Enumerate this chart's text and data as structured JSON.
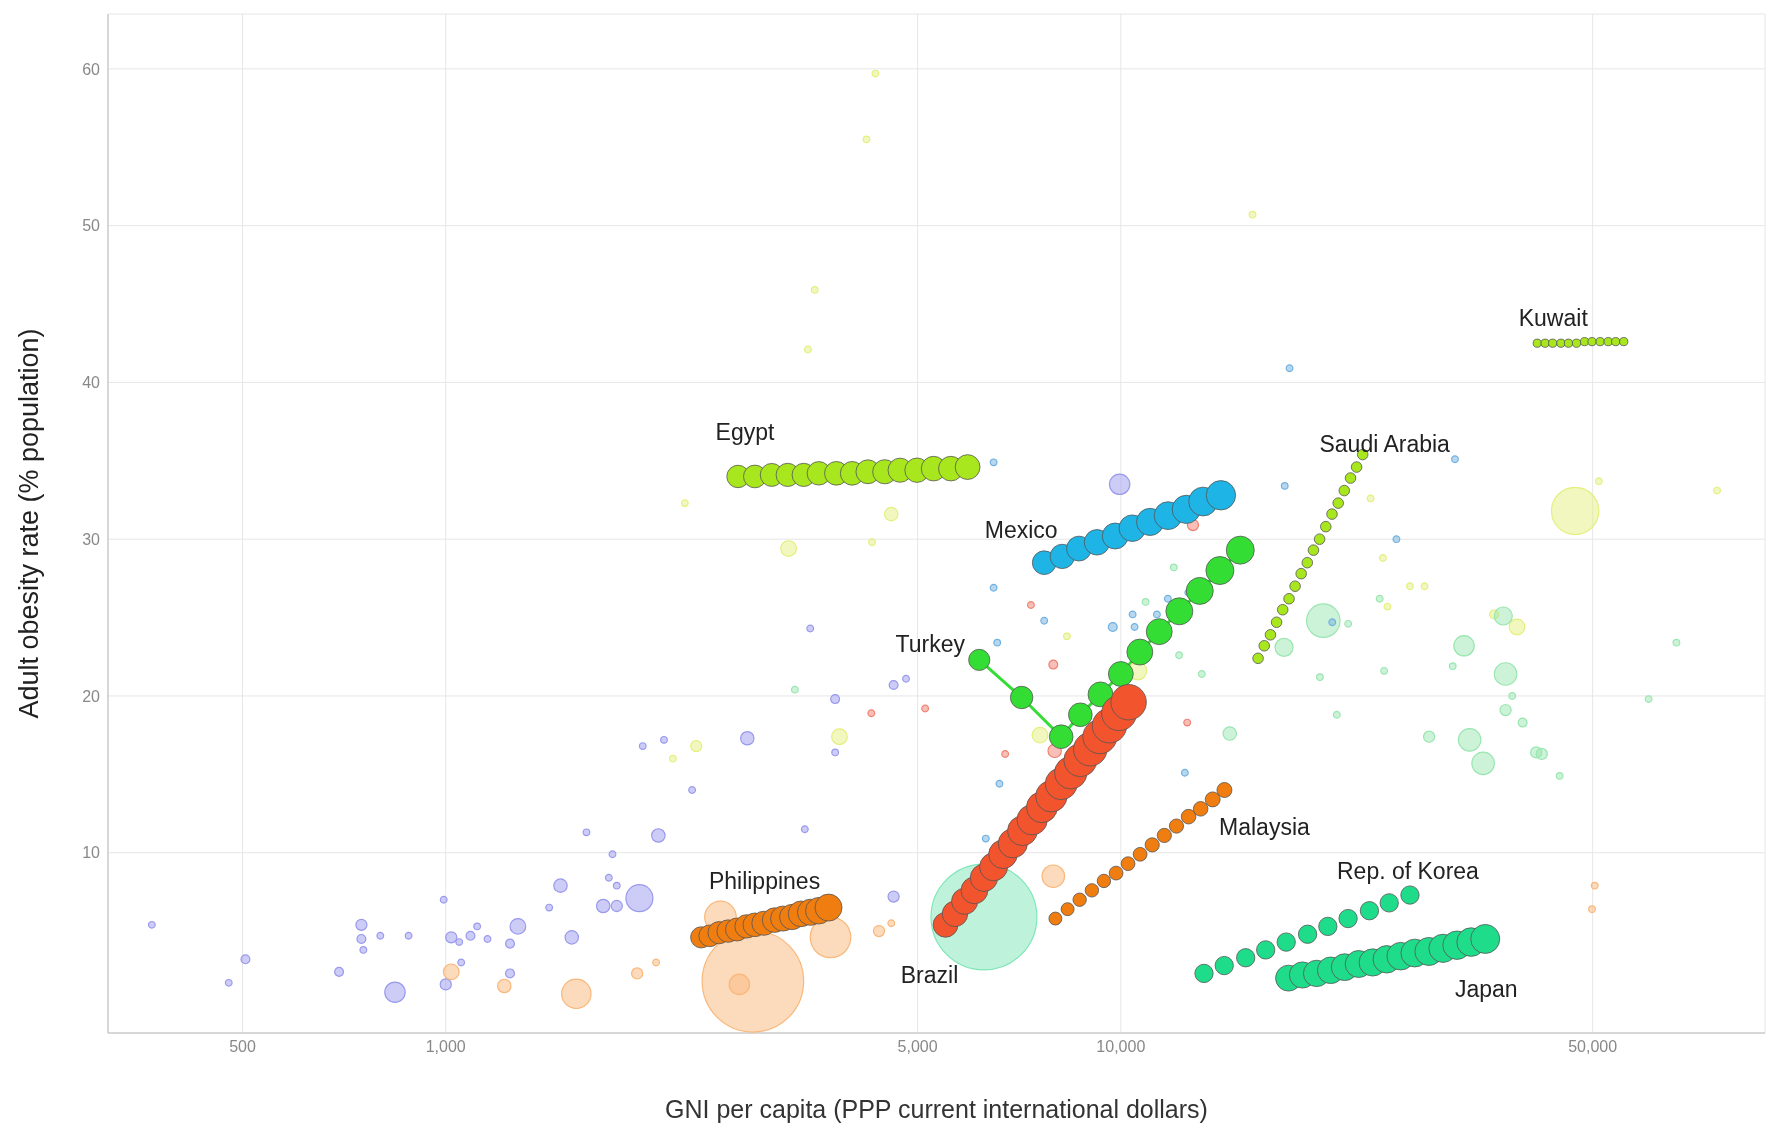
{
  "chart_data": {
    "type": "bubble",
    "xlabel": "GNI per capita (PPP current international dollars)",
    "ylabel": "Adult obesity rate (% population)",
    "log": "x",
    "grid": true,
    "xlim": [
      316,
      90000
    ],
    "ylim": [
      -1.5,
      63.5
    ],
    "xticks": [
      500,
      {
        "value": 1000,
        "label": "1,000"
      },
      {
        "value": 5000,
        "label": "5,000"
      },
      {
        "value": 10000,
        "label": "10,000"
      },
      {
        "value": 50000,
        "label": "50,000"
      }
    ],
    "yticks": [
      10,
      20,
      30,
      40,
      50,
      60
    ],
    "series": [
      {
        "color": "#9999ee",
        "x": [
          367,
          477,
          505,
          695,
          750,
          750,
          755,
          800,
          881,
          841,
          993,
          1019,
          1000,
          1047,
          1054,
          1088,
          1113,
          1153,
          1245,
          1245,
          1279,
          1423,
          1479,
          1537,
          1616,
          1711,
          1744,
          1766,
          1792,
          1792,
          1936,
          1958,
          2065,
          2105,
          2317,
          2797,
          3403,
          3467,
          3774,
          3774,
          4607,
          4607,
          4806,
          9960
        ],
        "values": [
          5.4,
          1.7,
          3.2,
          2.4,
          5.4,
          4.5,
          3.8,
          4.7,
          4.7,
          1.1,
          7.0,
          4.6,
          1.6,
          4.3,
          3.0,
          4.7,
          5.3,
          4.5,
          4.2,
          2.3,
          5.3,
          6.5,
          7.9,
          4.6,
          11.3,
          6.6,
          8.4,
          9.9,
          6.6,
          7.9,
          7.1,
          16.8,
          11.1,
          17.2,
          14.0,
          17.3,
          11.5,
          24.3,
          16.4,
          19.8,
          7.2,
          20.7,
          21.1,
          33.5
        ],
        "sizes": [
          0.004,
          0.004,
          0.007,
          0.007,
          0.011,
          0.007,
          0.004,
          0.004,
          0.004,
          0.037,
          0.004,
          0.011,
          0.011,
          0.004,
          0.004,
          0.007,
          0.004,
          0.004,
          0.007,
          0.007,
          0.022,
          0.004,
          0.016,
          0.016,
          0.004,
          0.016,
          0.004,
          0.004,
          0.011,
          0.004,
          0.065,
          0.004,
          0.016,
          0.004,
          0.004,
          0.016,
          0.004,
          0.004,
          0.004,
          0.007,
          0.011,
          0.007,
          0.004,
          0.037
        ]
      },
      {
        "color": "#f9b77a",
        "x": [
          1019,
          1221,
          1561,
          1921,
          2049,
          2552,
          2851,
          2722,
          3715,
          4383,
          4571,
          7943,
          49890,
          50350
        ],
        "values": [
          2.4,
          1.5,
          1.0,
          2.3,
          3.0,
          5.9,
          1.8,
          1.6,
          4.6,
          5.0,
          5.5,
          8.5,
          6.4,
          7.9
        ],
        "sizes": [
          0.022,
          0.016,
          0.077,
          0.011,
          0.004,
          0.089,
          0.92,
          0.037,
          0.147,
          0.011,
          0.004,
          0.045,
          0.004,
          0.004
        ]
      },
      {
        "color": "#7fe6b8",
        "x": [
          6270
        ],
        "values": [
          5.9
        ],
        "sizes": [
          1
        ]
      },
      {
        "color": "#e4ef7e",
        "x": [
          4330,
          4200,
          3520,
          3440,
          15670,
          2260,
          3220,
          4570,
          4280,
          3830,
          2350,
          2170,
          7590,
          8320,
          10590,
          47100,
          51060,
          76420,
          35730,
          38620,
          23440,
          24450,
          24830,
          26810,
          28180
        ],
        "values": [
          59.7,
          55.5,
          45.9,
          42.1,
          50.7,
          32.3,
          29.4,
          31.6,
          29.8,
          17.4,
          16.8,
          16.0,
          17.5,
          23.8,
          21.6,
          31.8,
          33.7,
          33.1,
          25.2,
          24.4,
          32.6,
          28.8,
          25.7,
          27.0,
          27.0
        ],
        "sizes": [
          0.004,
          0.004,
          0.004,
          0.004,
          0.004,
          0.004,
          0.022,
          0.016,
          0.004,
          0.022,
          0.011,
          0.004,
          0.022,
          0.004,
          0.029,
          0.2,
          0.004,
          0.004,
          0.007,
          0.022,
          0.004,
          0.004,
          0.004,
          0.004,
          0.004
        ]
      },
      {
        "color": "#99e6b0",
        "x": [
          19950,
          17450,
          14500,
          28620,
          32240,
          32860,
          34410,
          37150,
          36860,
          37150,
          39370,
          41240,
          42030,
          44670,
          60510,
          66530,
          20890,
          21720,
          24550,
          24180,
          12200,
          13180,
          11980,
          10880,
          38000,
          19720,
          3290,
          31020
        ],
        "values": [
          24.8,
          23.1,
          17.6,
          17.4,
          23.2,
          17.2,
          15.7,
          21.4,
          25.1,
          19.1,
          18.3,
          16.4,
          16.3,
          14.9,
          19.8,
          23.4,
          18.8,
          24.6,
          21.6,
          26.2,
          22.6,
          21.4,
          28.2,
          26.0,
          20.0,
          21.2,
          20.4,
          21.9
        ],
        "sizes": [
          0.1,
          0.029,
          0.016,
          0.011,
          0.037,
          0.045,
          0.045,
          0.045,
          0.029,
          0.011,
          0.007,
          0.011,
          0.011,
          0.004,
          0.004,
          0.004,
          0.004,
          0.004,
          0.004,
          0.004,
          0.004,
          0.004,
          0.004,
          0.004,
          0.004,
          0.004,
          0.004,
          0.004
        ]
      },
      {
        "color": "#6fb0e0",
        "x": [
          6480,
          17780,
          31260,
          17490,
          25600,
          6480,
          7700,
          9730,
          10410,
          10480,
          11310,
          20570,
          12590,
          11740,
          6560,
          6610,
          6310,
          12440
        ],
        "values": [
          34.9,
          40.9,
          35.1,
          33.4,
          30.0,
          26.9,
          24.8,
          24.4,
          25.2,
          24.4,
          25.2,
          24.7,
          26.6,
          26.2,
          23.4,
          14.4,
          10.9,
          15.1
        ],
        "sizes": [
          0.004,
          0.004,
          0.004,
          0.004,
          0.004,
          0.004,
          0.004,
          0.007,
          0.004,
          0.004,
          0.004,
          0.004,
          0.004,
          0.004,
          0.004,
          0.004,
          0.004,
          0.004
        ]
      },
      {
        "color": "#f08070",
        "x": [
          12790,
          7360,
          7943,
          4270,
          5130,
          6740,
          7980,
          12540
        ],
        "values": [
          30.9,
          25.8,
          22.0,
          18.9,
          19.2,
          16.3,
          16.5,
          18.3
        ],
        "sizes": [
          0.011,
          0.004,
          0.007,
          0.004,
          0.004,
          0.004,
          0.016,
          0.004
        ]
      },
      {
        "name": "Egypt",
        "color": "#a8e61d",
        "x": [
          2710,
          2870,
          3040,
          3210,
          3390,
          3570,
          3790,
          4000,
          4220,
          4470,
          4710,
          4990,
          5280,
          5600,
          5930
        ],
        "values": [
          34.0,
          34.0,
          34.1,
          34.1,
          34.1,
          34.2,
          34.2,
          34.2,
          34.3,
          34.3,
          34.4,
          34.4,
          34.5,
          34.5,
          34.6
        ],
        "sizes": [
          0.045,
          0.046,
          0.047,
          0.048,
          0.048,
          0.049,
          0.05,
          0.05,
          0.051,
          0.052,
          0.052,
          0.053,
          0.054,
          0.054,
          0.055
        ]
      },
      {
        "name": "Mexico",
        "color": "#1eb4e6",
        "x": [
          7700,
          8190,
          8670,
          9220,
          9810,
          10400,
          11050,
          11750,
          12500,
          13240,
          14070
        ],
        "values": [
          28.5,
          28.9,
          29.4,
          29.8,
          30.2,
          30.7,
          31.1,
          31.5,
          31.9,
          32.4,
          32.8
        ],
        "sizes": [
          0.05,
          0.053,
          0.055,
          0.058,
          0.06,
          0.063,
          0.066,
          0.069,
          0.071,
          0.074,
          0.077
        ]
      },
      {
        "name": "Saudi Arabia",
        "color": "#a8e61d",
        "x": [
          15970,
          16310,
          16660,
          17010,
          17370,
          17750,
          18120,
          18500,
          18890,
          19290,
          19700,
          20120,
          20550,
          20990,
          21430,
          21890,
          22350,
          22820
        ],
        "values": [
          22.4,
          23.2,
          23.9,
          24.7,
          25.5,
          26.2,
          27.0,
          27.8,
          28.5,
          29.3,
          30.0,
          30.8,
          31.6,
          32.3,
          33.1,
          33.9,
          34.6,
          35.4
        ],
        "sizes": [
          0.01,
          0.01,
          0.01,
          0.01,
          0.01,
          0.01,
          0.01,
          0.01,
          0.01,
          0.01,
          0.01,
          0.01,
          0.01,
          0.01,
          0.01,
          0.01,
          0.01,
          0.01
        ]
      },
      {
        "name": "Kuwait",
        "color": "#a8e61d",
        "x": [
          41390,
          42510,
          43620,
          44870,
          46030,
          47320,
          48640,
          49890,
          51290,
          52720,
          54080,
          55590
        ],
        "values": [
          42.5,
          42.5,
          42.5,
          42.5,
          42.5,
          42.5,
          42.6,
          42.6,
          42.6,
          42.6,
          42.6,
          42.6
        ],
        "sizes": [
          0.006,
          0.006,
          0.006,
          0.006,
          0.006,
          0.006,
          0.006,
          0.006,
          0.006,
          0.006,
          0.006,
          0.006
        ]
      },
      {
        "name": "Turkey",
        "color": "#33dd33",
        "x": [
          6170,
          7130,
          8160,
          8710,
          9330,
          10000,
          10670,
          11400,
          12210,
          13090,
          14020,
          15030
        ],
        "values": [
          22.3,
          19.9,
          17.4,
          18.8,
          20.1,
          21.4,
          22.8,
          24.1,
          25.4,
          26.7,
          28.0,
          29.3
        ],
        "sizes": [
          0.04,
          0.045,
          0.05,
          0.05,
          0.055,
          0.055,
          0.06,
          0.06,
          0.065,
          0.065,
          0.07,
          0.07
        ]
      },
      {
        "name": "Brazil",
        "color": "#f2542d",
        "x": [
          5500,
          5680,
          5870,
          6070,
          6270,
          6480,
          6690,
          6920,
          7150,
          7390,
          7640,
          7890,
          8160,
          8430,
          8710,
          9010,
          9310,
          9620,
          9940,
          10270
        ],
        "values": [
          5.4,
          6.1,
          6.9,
          7.6,
          8.4,
          9.1,
          9.9,
          10.6,
          11.4,
          12.1,
          12.9,
          13.6,
          14.4,
          15.1,
          15.9,
          16.6,
          17.4,
          18.1,
          18.9,
          19.6
        ],
        "sizes": [
          0.055,
          0.058,
          0.061,
          0.064,
          0.067,
          0.07,
          0.073,
          0.076,
          0.079,
          0.082,
          0.085,
          0.088,
          0.091,
          0.094,
          0.097,
          0.1,
          0.103,
          0.106,
          0.109,
          0.112
        ]
      },
      {
        "name": "Malaysia",
        "color": "#f07d0f",
        "x": [
          8000,
          8340,
          8690,
          9060,
          9440,
          9840,
          10250,
          10680,
          11130,
          11600,
          12090,
          12600,
          13130,
          13680,
          14240
        ],
        "values": [
          5.8,
          6.4,
          7.0,
          7.6,
          8.2,
          8.7,
          9.3,
          9.9,
          10.5,
          11.1,
          11.7,
          12.3,
          12.8,
          13.4,
          14.0
        ],
        "sizes": [
          0.015,
          0.015,
          0.016,
          0.016,
          0.016,
          0.017,
          0.017,
          0.017,
          0.018,
          0.018,
          0.018,
          0.019,
          0.019,
          0.02,
          0.02
        ]
      },
      {
        "name": "Philippines",
        "color": "#f07d0f",
        "x": [
          2390,
          2460,
          2540,
          2620,
          2700,
          2790,
          2870,
          2960,
          3070,
          3160,
          3260,
          3360,
          3470,
          3570,
          3690
        ],
        "values": [
          4.6,
          4.7,
          4.9,
          5.0,
          5.1,
          5.3,
          5.4,
          5.5,
          5.7,
          5.8,
          5.9,
          6.1,
          6.2,
          6.3,
          6.5
        ],
        "sizes": [
          0.04,
          0.042,
          0.044,
          0.045,
          0.047,
          0.049,
          0.05,
          0.052,
          0.054,
          0.056,
          0.057,
          0.059,
          0.061,
          0.063,
          0.065
        ]
      },
      {
        "name": "Rep. of Korea",
        "color": "#1fdc8a",
        "x": [
          13280,
          14230,
          15310,
          16390,
          17580,
          18910,
          20260,
          21710,
          23350,
          24980,
          26810
        ],
        "values": [
          2.3,
          2.8,
          3.3,
          3.8,
          4.3,
          4.8,
          5.3,
          5.8,
          6.3,
          6.8,
          7.3
        ],
        "sizes": [
          0.03,
          0.03,
          0.03,
          0.03,
          0.03,
          0.03,
          0.03,
          0.03,
          0.03,
          0.03,
          0.03
        ]
      },
      {
        "name": "Japan",
        "color": "#1fdc8a",
        "x": [
          17720,
          18580,
          19500,
          20460,
          21460,
          22510,
          23610,
          24770,
          25980,
          27260,
          28600,
          30010,
          31480,
          33030,
          34660
        ],
        "values": [
          2.0,
          2.2,
          2.3,
          2.5,
          2.7,
          2.9,
          3.0,
          3.2,
          3.4,
          3.6,
          3.7,
          3.9,
          4.1,
          4.3,
          4.5
        ],
        "sizes": [
          0.06,
          0.061,
          0.062,
          0.063,
          0.064,
          0.065,
          0.066,
          0.067,
          0.068,
          0.069,
          0.07,
          0.071,
          0.072,
          0.073,
          0.075
        ]
      },
      {
        "type": "line",
        "color": "#33dd33",
        "line_style": "solid",
        "x": [
          6170,
          7130,
          8160,
          8710,
          9330,
          10000,
          10670,
          11400,
          12210,
          13090,
          14020,
          15030
        ],
        "values": [
          22.3,
          19.9,
          17.4,
          18.8,
          20.1,
          21.4,
          22.8,
          24.1,
          25.4,
          26.7,
          28.0,
          29.3
        ]
      }
    ]
  }
}
